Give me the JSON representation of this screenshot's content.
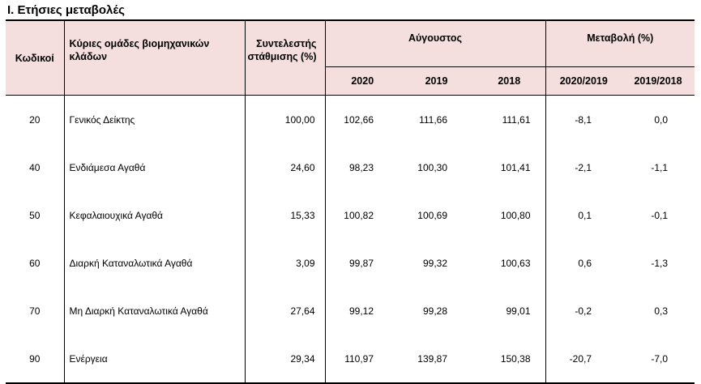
{
  "title": "I. Ετήσιες μεταβολές",
  "header": {
    "code": "Κωδικοί",
    "groups": "Κύριες ομάδες βιομηχανικών κλάδων",
    "weight": "Συντελεστής στάθμισης (%)",
    "august": "Αύγουστος",
    "change": "Μεταβολή (%)",
    "years": [
      "2020",
      "2019",
      "2018"
    ],
    "change_periods": [
      "2020/2019",
      "2019/2018"
    ]
  },
  "rows": [
    {
      "code": "20",
      "name": "Γενικός Δείκτης",
      "weight": "100,00",
      "v2020": "102,66",
      "v2019": "111,66",
      "v2018": "111,61",
      "c1": "-8,1",
      "c2": "0,0"
    },
    {
      "code": "40",
      "name": "Ενδιάμεσα Αγαθά",
      "weight": "24,60",
      "v2020": "98,23",
      "v2019": "100,30",
      "v2018": "101,41",
      "c1": "-2,1",
      "c2": "-1,1"
    },
    {
      "code": "50",
      "name": "Κεφαλαιουχικά Αγαθά",
      "weight": "15,33",
      "v2020": "100,82",
      "v2019": "100,69",
      "v2018": "100,80",
      "c1": "0,1",
      "c2": "-0,1"
    },
    {
      "code": "60",
      "name": "Διαρκή Καταναλωτικά Αγαθά",
      "weight": "3,09",
      "v2020": "99,87",
      "v2019": "99,32",
      "v2018": "100,63",
      "c1": "0,6",
      "c2": "-1,3"
    },
    {
      "code": "70",
      "name": "Μη Διαρκή Καταναλωτικά Αγαθά",
      "weight": "27,64",
      "v2020": "99,12",
      "v2019": "99,28",
      "v2018": "99,01",
      "c1": "-0,2",
      "c2": "0,3"
    },
    {
      "code": "90",
      "name": "Ενέργεια",
      "weight": "29,34",
      "v2020": "110,97",
      "v2019": "139,87",
      "v2018": "150,38",
      "c1": "-20,7",
      "c2": "-7,0"
    }
  ]
}
